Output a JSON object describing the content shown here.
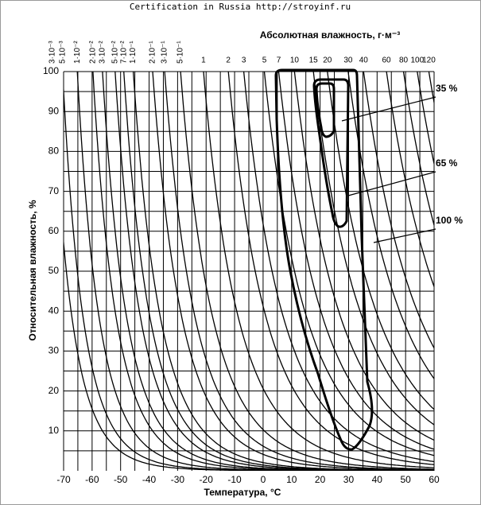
{
  "header": "Certification in Russia http://stroyinf.ru",
  "chart_data": {
    "type": "line",
    "xlabel": "Температура, °C",
    "ylabel": "Относительная влажность, %",
    "top_axis_label": "Абсолютная влажность, г·м⁻³",
    "xlim": [
      -70,
      60
    ],
    "ylim": [
      0,
      100
    ],
    "xticks": [
      -70,
      -60,
      -50,
      -40,
      -30,
      -20,
      -10,
      0,
      10,
      20,
      30,
      40,
      50,
      60
    ],
    "yticks": [
      10,
      20,
      30,
      40,
      50,
      60,
      70,
      80,
      90,
      100
    ],
    "grid": true,
    "top_ticks": [
      {
        "value": 0.003,
        "label": "3·10⁻³"
      },
      {
        "value": 0.005,
        "label": "5·10⁻³"
      },
      {
        "value": 0.01,
        "label": "1·10⁻²"
      },
      {
        "value": 0.02,
        "label": "2·10⁻²"
      },
      {
        "value": 0.03,
        "label": "3·10⁻²"
      },
      {
        "value": 0.05,
        "label": "5·10⁻²"
      },
      {
        "value": 0.07,
        "label": "7·10⁻²"
      },
      {
        "value": 0.1,
        "label": "1·10⁻¹"
      },
      {
        "value": 0.2,
        "label": "2·10⁻¹"
      },
      {
        "value": 0.3,
        "label": "3·10⁻¹"
      },
      {
        "value": 0.5,
        "label": "5·10⁻¹"
      },
      1,
      2,
      3,
      5,
      7,
      10,
      15,
      20,
      30,
      40,
      60,
      80,
      100,
      120
    ],
    "annotations": [
      "35 %",
      "65 %",
      "100 %"
    ]
  }
}
